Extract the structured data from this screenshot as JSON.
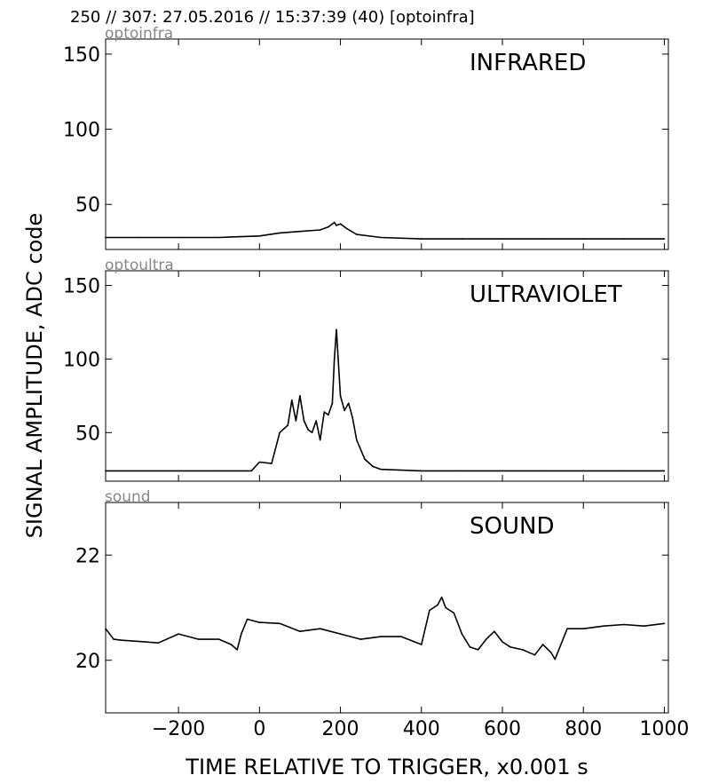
{
  "header": {
    "title": "250 // 307:   27.05.2016 // 15:37:39 (40)  [optoinfra]"
  },
  "colors": {
    "line": "#000000",
    "panel_name": "#888888",
    "background": "#ffffff"
  },
  "chart_data": {
    "type": "line",
    "layout": "three vertically stacked panels sharing one x axis",
    "xlabel": "TIME RELATIVE TO TRIGGER,   x0.001 s",
    "ylabel": "SIGNAL AMPLITUDE,  ADC code",
    "xlim": [
      -380,
      1010
    ],
    "xticks": [
      -200,
      0,
      200,
      400,
      600,
      800,
      1000
    ],
    "xtick_labels": [
      "−200",
      "0",
      "200",
      "400",
      "600",
      "800",
      "1000"
    ],
    "grid": false,
    "panels": [
      {
        "name": "optoinfra",
        "label": "INFRARED",
        "ylim": [
          20,
          160
        ],
        "yticks": [
          50,
          100,
          150
        ],
        "ytick_labels": [
          "50",
          "100",
          "150"
        ],
        "series": [
          {
            "x": [
              -380,
              -300,
              -200,
              -100,
              0,
              50,
              100,
              150,
              170,
              185,
              190,
              200,
              215,
              240,
              300,
              400,
              500,
              600,
              700,
              800,
              900,
              1000
            ],
            "y": [
              28,
              28,
              28,
              28,
              29,
              31,
              32,
              33,
              35,
              38,
              36,
              37,
              34,
              30,
              28,
              27,
              27,
              27,
              27,
              27,
              27,
              27
            ]
          }
        ]
      },
      {
        "name": "optoultra",
        "label": "ULTRAVIOLET",
        "ylim": [
          17,
          160
        ],
        "yticks": [
          50,
          100,
          150
        ],
        "ytick_labels": [
          "50",
          "100",
          "150"
        ],
        "series": [
          {
            "x": [
              -380,
              -200,
              -100,
              -20,
              0,
              30,
              50,
              70,
              80,
              90,
              100,
              110,
              120,
              130,
              140,
              150,
              160,
              170,
              180,
              185,
              190,
              200,
              210,
              220,
              230,
              240,
              260,
              280,
              300,
              400,
              500,
              600,
              700,
              800,
              900,
              1000
            ],
            "y": [
              24,
              24,
              24,
              24,
              30,
              29,
              50,
              55,
              72,
              58,
              75,
              58,
              52,
              50,
              58,
              45,
              64,
              62,
              70,
              100,
              120,
              75,
              65,
              70,
              60,
              45,
              32,
              27,
              25,
              24,
              24,
              24,
              24,
              24,
              24,
              24
            ]
          }
        ]
      },
      {
        "name": "sound",
        "label": "SOUND",
        "ylim": [
          19,
          23
        ],
        "yticks": [
          20,
          22
        ],
        "ytick_labels": [
          "20",
          "22"
        ],
        "series": [
          {
            "x": [
              -380,
              -360,
              -340,
              -300,
              -250,
              -200,
              -150,
              -100,
              -70,
              -55,
              -45,
              -30,
              0,
              50,
              100,
              150,
              200,
              250,
              300,
              350,
              400,
              420,
              440,
              450,
              460,
              480,
              500,
              520,
              540,
              560,
              580,
              600,
              620,
              650,
              680,
              700,
              720,
              730,
              760,
              800,
              850,
              900,
              950,
              1000
            ],
            "y": [
              20.6,
              20.4,
              20.38,
              20.36,
              20.33,
              20.5,
              20.4,
              20.4,
              20.3,
              20.2,
              20.5,
              20.78,
              20.72,
              20.7,
              20.55,
              20.6,
              20.5,
              20.4,
              20.45,
              20.45,
              20.3,
              20.95,
              21.05,
              21.2,
              21.0,
              20.9,
              20.5,
              20.25,
              20.2,
              20.4,
              20.55,
              20.35,
              20.25,
              20.2,
              20.1,
              20.3,
              20.15,
              20.02,
              20.6,
              20.6,
              20.65,
              20.68,
              20.65,
              20.7
            ]
          }
        ]
      }
    ]
  }
}
